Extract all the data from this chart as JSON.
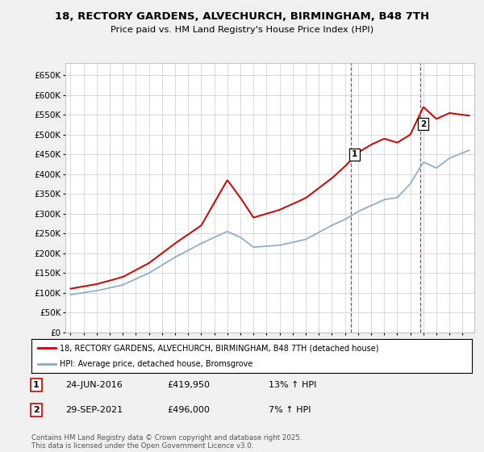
{
  "title_line1": "18, RECTORY GARDENS, ALVECHURCH, BIRMINGHAM, B48 7TH",
  "title_line2": "Price paid vs. HM Land Registry's House Price Index (HPI)",
  "ylim": [
    0,
    680000
  ],
  "yticks": [
    0,
    50000,
    100000,
    150000,
    200000,
    250000,
    300000,
    350000,
    400000,
    450000,
    500000,
    550000,
    600000,
    650000
  ],
  "ytick_labels": [
    "£0",
    "£50K",
    "£100K",
    "£150K",
    "£200K",
    "£250K",
    "£300K",
    "£350K",
    "£400K",
    "£450K",
    "£500K",
    "£550K",
    "£600K",
    "£650K"
  ],
  "legend_line1": "18, RECTORY GARDENS, ALVECHURCH, BIRMINGHAM, B48 7TH (detached house)",
  "legend_line2": "HPI: Average price, detached house, Bromsgrove",
  "line1_color": "#cc0000",
  "line2_color": "#88aacc",
  "marker1_date": 2016.48,
  "marker1_value": 419950,
  "marker2_date": 2021.74,
  "marker2_value": 496000,
  "footnote": "Contains HM Land Registry data © Crown copyright and database right 2025.\nThis data is licensed under the Open Government Licence v3.0.",
  "background_color": "#f0f0f0",
  "plot_background": "#ffffff",
  "grid_color": "#cccccc",
  "dashed_line_color": "#cc0000",
  "hpi_key_years": [
    1995,
    1997,
    1999,
    2001,
    2003,
    2005,
    2007,
    2008,
    2009,
    2011,
    2013,
    2015,
    2016,
    2017,
    2018,
    2019,
    2020,
    2021,
    2022,
    2023,
    2024,
    2025.5
  ],
  "hpi_key_vals": [
    95000,
    105000,
    120000,
    150000,
    190000,
    225000,
    255000,
    240000,
    215000,
    220000,
    235000,
    270000,
    285000,
    305000,
    320000,
    335000,
    340000,
    375000,
    430000,
    415000,
    440000,
    460000
  ],
  "prop_key_years": [
    1995,
    1997,
    1999,
    2001,
    2003,
    2005,
    2007,
    2008,
    2009,
    2011,
    2013,
    2015,
    2016,
    2017,
    2018,
    2019,
    2020,
    2021,
    2022,
    2023,
    2024,
    2025.5
  ],
  "prop_key_vals": [
    110000,
    122000,
    140000,
    175000,
    225000,
    270000,
    385000,
    340000,
    290000,
    310000,
    340000,
    390000,
    420000,
    455000,
    475000,
    490000,
    480000,
    500000,
    570000,
    540000,
    555000,
    548000
  ]
}
